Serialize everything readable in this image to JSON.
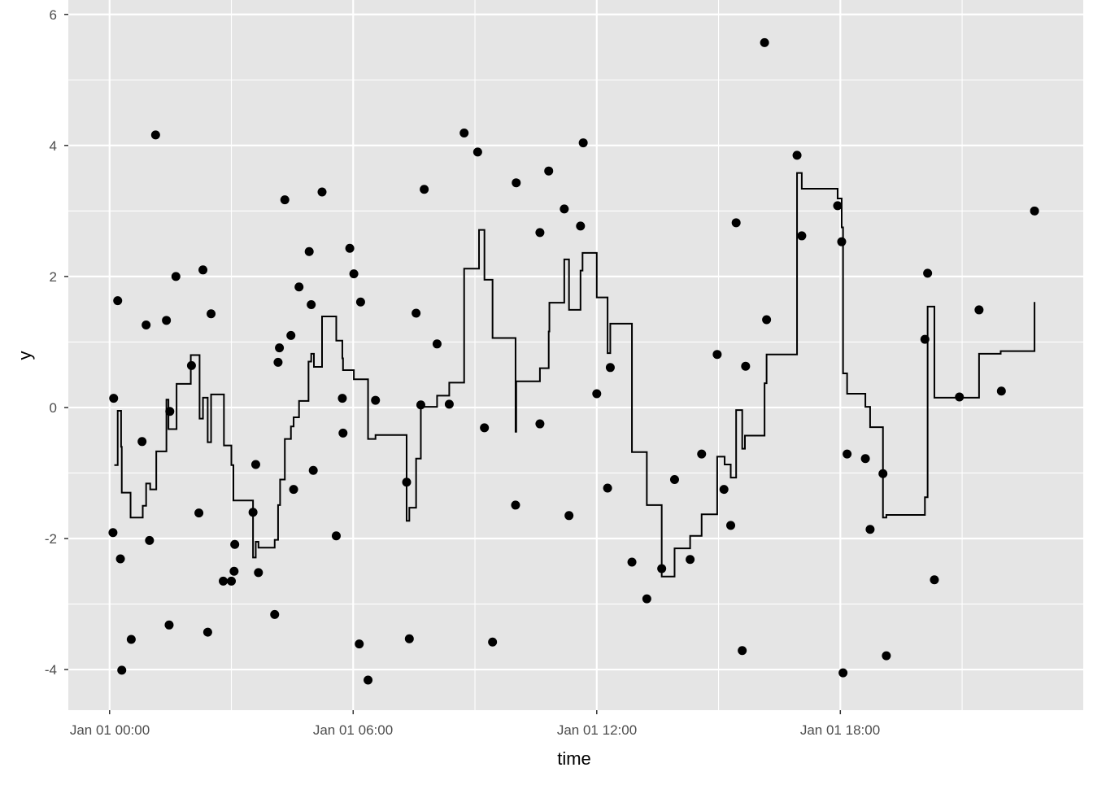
{
  "chart_data": {
    "type": "scatter",
    "title": "",
    "xlabel": "time",
    "ylabel": "y",
    "x_ticks": [
      "Jan 01 00:00",
      "Jan 01 06:00",
      "Jan 01 12:00",
      "Jan 01 18:00"
    ],
    "y_ticks": [
      "-4",
      "-2",
      "0",
      "2",
      "4",
      "6"
    ],
    "ylim": [
      -4.62,
      6.22
    ],
    "xlim": [
      "Dec 31 22:59",
      "Jan 01 23:59"
    ],
    "grid": true,
    "colors": {
      "panel": "#e5e5e5",
      "grid": "#ffffff",
      "marks": "#000000"
    },
    "points": [
      [
        "00:06",
        0.14
      ],
      [
        "00:12",
        1.63
      ],
      [
        "00:05",
        -1.91
      ],
      [
        "00:16",
        -2.31
      ],
      [
        "00:18",
        -4.01
      ],
      [
        "00:32",
        -3.54
      ],
      [
        "00:48",
        -0.52
      ],
      [
        "00:54",
        1.26
      ],
      [
        "00:59",
        -2.03
      ],
      [
        "01:08",
        4.16
      ],
      [
        "01:24",
        1.33
      ],
      [
        "01:28",
        -3.32
      ],
      [
        "01:29",
        -0.06
      ],
      [
        "01:38",
        2.0
      ],
      [
        "02:01",
        0.64
      ],
      [
        "02:12",
        -1.61
      ],
      [
        "02:18",
        2.1
      ],
      [
        "02:25",
        -3.43
      ],
      [
        "02:30",
        1.43
      ],
      [
        "02:48",
        -2.65
      ],
      [
        "03:00",
        -2.65
      ],
      [
        "03:04",
        -2.5
      ],
      [
        "03:05",
        -2.09
      ],
      [
        "03:32",
        -1.6
      ],
      [
        "03:36",
        -0.87
      ],
      [
        "03:40",
        -2.52
      ],
      [
        "04:04",
        -3.16
      ],
      [
        "04:09",
        0.69
      ],
      [
        "04:11",
        0.91
      ],
      [
        "04:19",
        3.17
      ],
      [
        "04:28",
        1.1
      ],
      [
        "04:32",
        -1.25
      ],
      [
        "04:40",
        1.84
      ],
      [
        "04:55",
        2.38
      ],
      [
        "04:58",
        1.57
      ],
      [
        "05:01",
        -0.96
      ],
      [
        "05:14",
        3.29
      ],
      [
        "05:35",
        -1.96
      ],
      [
        "05:44",
        0.14
      ],
      [
        "05:45",
        -0.39
      ],
      [
        "05:55",
        2.43
      ],
      [
        "06:01",
        2.04
      ],
      [
        "06:09",
        -3.61
      ],
      [
        "06:11",
        1.61
      ],
      [
        "06:22",
        -4.16
      ],
      [
        "06:33",
        0.11
      ],
      [
        "07:19",
        -1.14
      ],
      [
        "07:23",
        -3.53
      ],
      [
        "07:33",
        1.44
      ],
      [
        "07:40",
        0.04
      ],
      [
        "07:45",
        3.33
      ],
      [
        "08:04",
        0.97
      ],
      [
        "08:22",
        0.05
      ],
      [
        "08:44",
        4.19
      ],
      [
        "09:04",
        3.9
      ],
      [
        "09:14",
        -0.31
      ],
      [
        "09:26",
        -3.58
      ],
      [
        "10:00",
        -1.49
      ],
      [
        "10:01",
        3.43
      ],
      [
        "10:36",
        -0.25
      ],
      [
        "10:36",
        2.67
      ],
      [
        "10:49",
        3.61
      ],
      [
        "11:12",
        3.03
      ],
      [
        "11:19",
        -1.65
      ],
      [
        "11:36",
        2.77
      ],
      [
        "11:40",
        4.04
      ],
      [
        "12:00",
        0.21
      ],
      [
        "12:16",
        -1.23
      ],
      [
        "12:20",
        0.61
      ],
      [
        "12:52",
        -2.36
      ],
      [
        "13:14",
        -2.92
      ],
      [
        "13:36",
        -2.46
      ],
      [
        "13:55",
        -1.1
      ],
      [
        "14:18",
        -2.32
      ],
      [
        "14:35",
        -0.71
      ],
      [
        "14:58",
        0.81
      ],
      [
        "15:08",
        -1.25
      ],
      [
        "15:18",
        -1.8
      ],
      [
        "15:26",
        2.82
      ],
      [
        "15:35",
        -3.71
      ],
      [
        "15:40",
        0.63
      ],
      [
        "16:08",
        5.57
      ],
      [
        "16:11",
        1.34
      ],
      [
        "16:56",
        3.85
      ],
      [
        "17:03",
        2.62
      ],
      [
        "17:56",
        3.08
      ],
      [
        "18:02",
        2.53
      ],
      [
        "18:04",
        -4.05
      ],
      [
        "18:10",
        -0.71
      ],
      [
        "18:37",
        -0.78
      ],
      [
        "18:44",
        -1.86
      ],
      [
        "19:03",
        -1.01
      ],
      [
        "19:08",
        -3.79
      ],
      [
        "20:05",
        1.04
      ],
      [
        "20:09",
        2.05
      ],
      [
        "20:19",
        -2.63
      ],
      [
        "20:56",
        0.16
      ],
      [
        "21:25",
        1.49
      ],
      [
        "21:58",
        0.25
      ],
      [
        "22:47",
        3.0
      ]
    ],
    "step_line": [
      [
        "00:07",
        -0.88
      ],
      [
        "00:12",
        -0.05
      ],
      [
        "00:17",
        -0.6
      ],
      [
        "00:18",
        -1.3
      ],
      [
        "00:31",
        -1.68
      ],
      [
        "00:49",
        -1.5
      ],
      [
        "00:54",
        -1.16
      ],
      [
        "01:00",
        -1.25
      ],
      [
        "01:09",
        -0.67
      ],
      [
        "01:24",
        0.12
      ],
      [
        "01:27",
        -0.33
      ],
      [
        "01:39",
        0.36
      ],
      [
        "02:00",
        0.8
      ],
      [
        "02:13",
        -0.17
      ],
      [
        "02:18",
        0.15
      ],
      [
        "02:25",
        -0.53
      ],
      [
        "02:30",
        0.2
      ],
      [
        "02:49",
        -0.58
      ],
      [
        "03:00",
        -0.88
      ],
      [
        "03:03",
        -1.42
      ],
      [
        "03:32",
        -2.29
      ],
      [
        "03:36",
        -2.05
      ],
      [
        "03:40",
        -2.14
      ],
      [
        "04:04",
        -2.02
      ],
      [
        "04:09",
        -1.49
      ],
      [
        "04:12",
        -1.1
      ],
      [
        "04:19",
        -0.48
      ],
      [
        "04:28",
        -0.29
      ],
      [
        "04:32",
        -0.15
      ],
      [
        "04:40",
        0.1
      ],
      [
        "04:54",
        0.7
      ],
      [
        "04:58",
        0.82
      ],
      [
        "05:02",
        0.62
      ],
      [
        "05:14",
        1.39
      ],
      [
        "05:35",
        1.02
      ],
      [
        "05:44",
        0.75
      ],
      [
        "05:45",
        0.57
      ],
      [
        "06:01",
        0.43
      ],
      [
        "06:22",
        -0.48
      ],
      [
        "06:33",
        -0.42
      ],
      [
        "07:19",
        -1.73
      ],
      [
        "07:23",
        -1.53
      ],
      [
        "07:33",
        -0.78
      ],
      [
        "07:40",
        0.01
      ],
      [
        "08:04",
        0.18
      ],
      [
        "08:22",
        0.38
      ],
      [
        "08:44",
        2.12
      ],
      [
        "09:06",
        2.71
      ],
      [
        "09:14",
        1.95
      ],
      [
        "09:26",
        1.06
      ],
      [
        "10:00",
        -0.37
      ],
      [
        "10:01",
        0.4
      ],
      [
        "10:36",
        0.6
      ],
      [
        "10:49",
        1.16
      ],
      [
        "10:50",
        1.6
      ],
      [
        "11:12",
        2.26
      ],
      [
        "11:19",
        1.49
      ],
      [
        "11:36",
        2.09
      ],
      [
        "11:39",
        2.36
      ],
      [
        "12:00",
        1.68
      ],
      [
        "12:16",
        0.83
      ],
      [
        "12:20",
        1.28
      ],
      [
        "12:52",
        -0.68
      ],
      [
        "13:14",
        -1.49
      ],
      [
        "13:36",
        -2.58
      ],
      [
        "13:55",
        -2.15
      ],
      [
        "14:18",
        -1.96
      ],
      [
        "14:35",
        -1.63
      ],
      [
        "14:58",
        -0.75
      ],
      [
        "15:09",
        -0.87
      ],
      [
        "15:18",
        -1.07
      ],
      [
        "15:26",
        -0.04
      ],
      [
        "15:35",
        -0.63
      ],
      [
        "15:39",
        -0.43
      ],
      [
        "16:08",
        0.37
      ],
      [
        "16:11",
        0.81
      ],
      [
        "16:56",
        3.58
      ],
      [
        "17:03",
        3.34
      ],
      [
        "17:56",
        3.19
      ],
      [
        "18:02",
        2.75
      ],
      [
        "18:04",
        0.52
      ],
      [
        "18:10",
        0.21
      ],
      [
        "18:37",
        0.01
      ],
      [
        "18:44",
        -0.3
      ],
      [
        "19:03",
        -1.68
      ],
      [
        "19:08",
        -1.64
      ],
      [
        "20:05",
        -1.37
      ],
      [
        "20:09",
        1.54
      ],
      [
        "20:19",
        0.15
      ],
      [
        "20:56",
        0.15
      ],
      [
        "21:25",
        0.82
      ],
      [
        "21:57",
        0.86
      ],
      [
        "22:47",
        1.61
      ]
    ]
  }
}
